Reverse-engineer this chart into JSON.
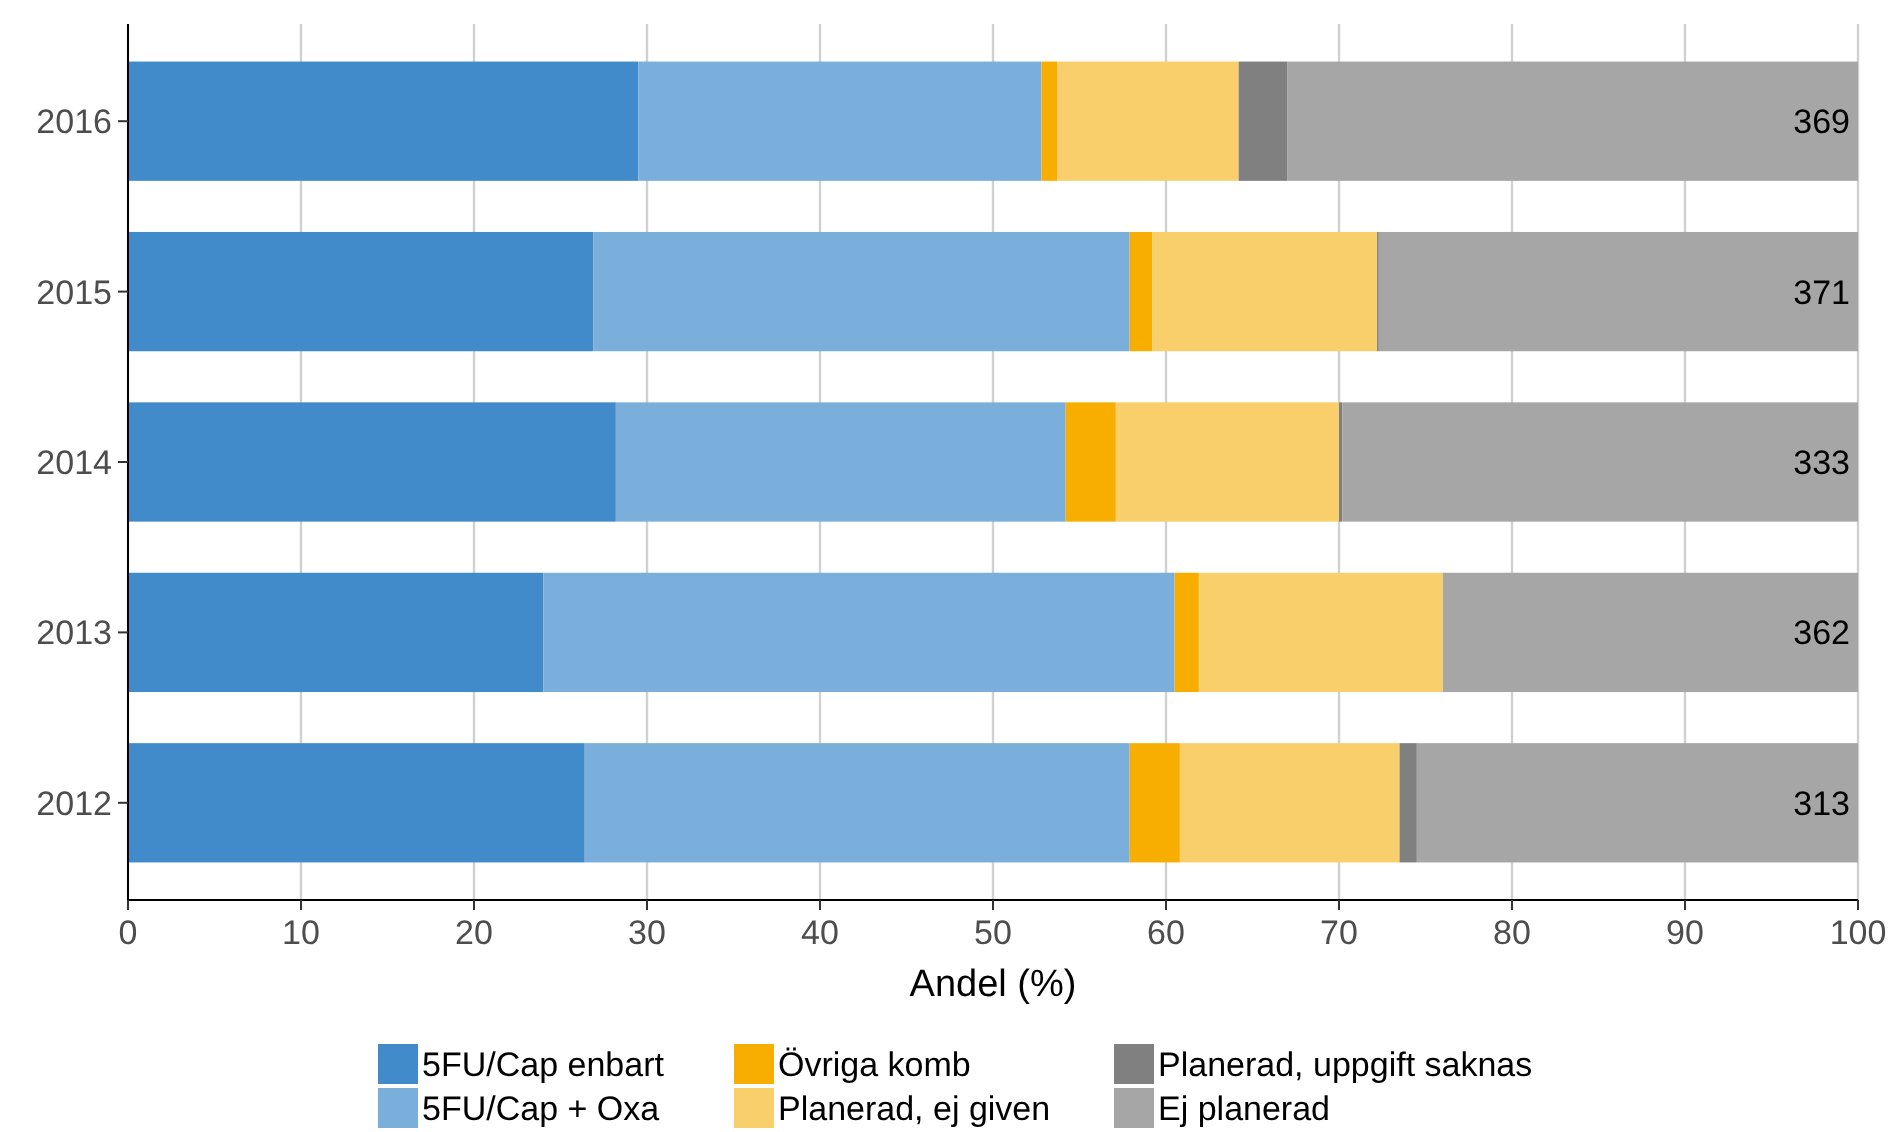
{
  "chart_data": {
    "type": "bar",
    "orientation": "horizontal",
    "stacked": true,
    "xlabel": "Andel (%)",
    "categories": [
      "2016",
      "2015",
      "2014",
      "2013",
      "2012"
    ],
    "series": [
      {
        "name": "5FU/Cap enbart",
        "color": "#428bca",
        "values": [
          29.5,
          26.9,
          28.2,
          24.0,
          26.4
        ]
      },
      {
        "name": "5FU/Cap + Oxa",
        "color": "#7aaedb",
        "values": [
          23.3,
          31.0,
          26.0,
          36.5,
          31.5
        ]
      },
      {
        "name": "Övriga komb",
        "color": "#f8ae00",
        "values": [
          0.9,
          1.3,
          2.9,
          1.4,
          2.9
        ]
      },
      {
        "name": "Planerad, ej given",
        "color": "#f8cf6a",
        "values": [
          10.5,
          13.0,
          12.9,
          14.1,
          12.7
        ]
      },
      {
        "name": "Planerad, uppgift saknas",
        "color": "#808080",
        "values": [
          2.8,
          0.1,
          0.2,
          0,
          1.0
        ]
      },
      {
        "name": "Ej planerad",
        "color": "#a6a6a6",
        "values": [
          33.0,
          27.7,
          29.8,
          24.0,
          25.5
        ]
      }
    ],
    "xlim": [
      0,
      100
    ],
    "xticks": [
      0,
      10,
      20,
      30,
      40,
      50,
      60,
      70,
      80,
      90,
      100
    ],
    "grid": "x",
    "legend": "bottom",
    "annotations": [
      "369",
      "371",
      "333",
      "362",
      "313"
    ]
  }
}
